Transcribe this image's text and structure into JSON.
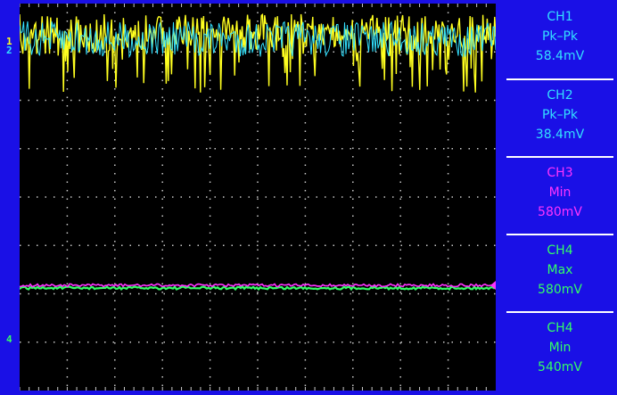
{
  "colors": {
    "ch1": "#ffff20",
    "ch2": "#33e0ff",
    "ch3": "#ff33ff",
    "ch4": "#33ff66",
    "frame": "#1a10e6",
    "grid": "#c8c8c8"
  },
  "markers": {
    "ch1": "1",
    "ch2": "2",
    "ch4": "4"
  },
  "measurements": [
    {
      "channel": "CH1",
      "type": "Pk–Pk",
      "value": "58.4mV",
      "color": "#33e0ff"
    },
    {
      "channel": "CH2",
      "type": "Pk–Pk",
      "value": "38.4mV",
      "color": "#33e0ff"
    },
    {
      "channel": "CH3",
      "type": "Min",
      "value": "580mV",
      "color": "#ff33ff"
    },
    {
      "channel": "CH4",
      "type": "Max",
      "value": "580mV",
      "color": "#33ff66"
    },
    {
      "channel": "CH4",
      "type": "Min",
      "value": "540mV",
      "color": "#33ff66"
    }
  ]
}
